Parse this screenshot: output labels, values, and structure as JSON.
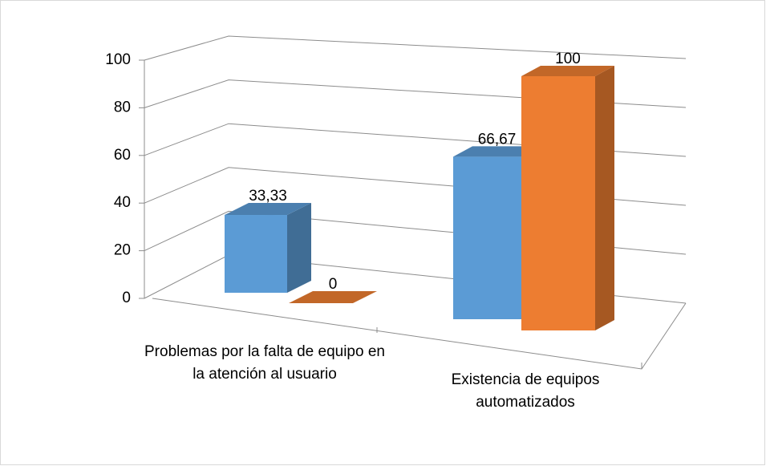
{
  "chart_data": {
    "type": "bar3d",
    "categories": [
      "Problemas por la falta de equipo en la atención al usuario",
      "Existencia de equipos automatizados"
    ],
    "series": [
      {
        "color": "#5b9bd5",
        "values": [
          33.33,
          66.67
        ],
        "value_labels": [
          "33,33",
          "66,67"
        ]
      },
      {
        "color": "#ed7d31",
        "values": [
          0,
          100
        ],
        "value_labels": [
          "0",
          "100"
        ]
      }
    ],
    "ylim": [
      0,
      100
    ],
    "yticks": [
      0,
      20,
      40,
      60,
      80,
      100
    ],
    "grid": true
  }
}
